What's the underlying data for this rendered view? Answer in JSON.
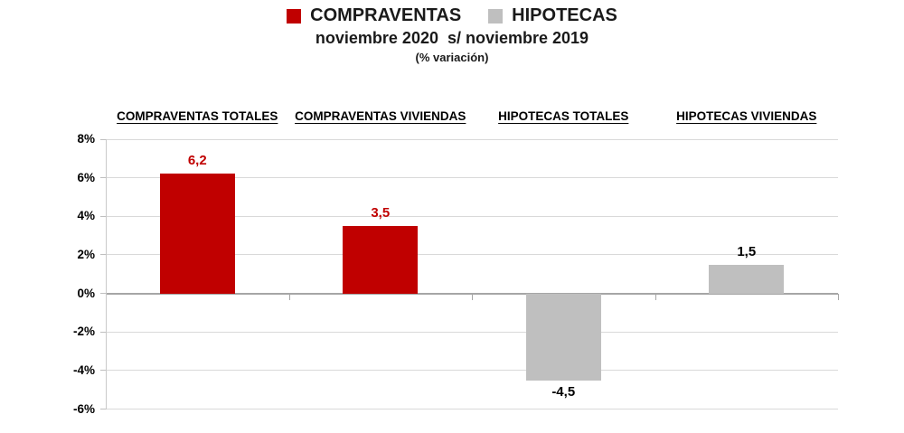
{
  "header": {
    "subtitle": "noviembre 2020  s/ noviembre 2019",
    "note": "(% variación)"
  },
  "legend": {
    "items": [
      {
        "label": "COMPRAVENTAS",
        "color": "#C00000"
      },
      {
        "label": "HIPOTECAS",
        "color": "#BFBFBF"
      }
    ]
  },
  "chart_data": {
    "type": "bar",
    "title": "noviembre 2020  s/ noviembre 2019",
    "subtitle": "(% variación)",
    "categories": [
      "COMPRAVENTAS TOTALES",
      "COMPRAVENTAS VIVIENDAS",
      "HIPOTECAS TOTALES",
      "HIPOTECAS VIVIENDAS"
    ],
    "values": [
      6.2,
      3.5,
      -4.5,
      1.5
    ],
    "value_labels": [
      "6,2",
      "3,5",
      "-4,5",
      "1,5"
    ],
    "series_of_point": [
      "COMPRAVENTAS",
      "COMPRAVENTAS",
      "HIPOTECAS",
      "HIPOTECAS"
    ],
    "bar_colors": [
      "#C00000",
      "#C00000",
      "#BFBFBF",
      "#BFBFBF"
    ],
    "label_colors": [
      "#C00000",
      "#C00000",
      "#000000",
      "#000000"
    ],
    "ylim": [
      -6,
      8
    ],
    "yticks": [
      {
        "value": 8,
        "label": "8%"
      },
      {
        "value": 6,
        "label": "6%"
      },
      {
        "value": 4,
        "label": "4%"
      },
      {
        "value": 2,
        "label": "2%"
      },
      {
        "value": 0,
        "label": "0%"
      },
      {
        "value": -2,
        "label": "-2%"
      },
      {
        "value": -4,
        "label": "-4%"
      },
      {
        "value": -6,
        "label": "-6%"
      }
    ],
    "grid": true,
    "legend_position": "top",
    "xlabel": "",
    "ylabel": ""
  },
  "colors": {
    "gridline": "#D9D9D9",
    "zero_line": "#A6A6A6",
    "axis_line": "#C9C9C9",
    "tick": "#BFBFBF"
  }
}
